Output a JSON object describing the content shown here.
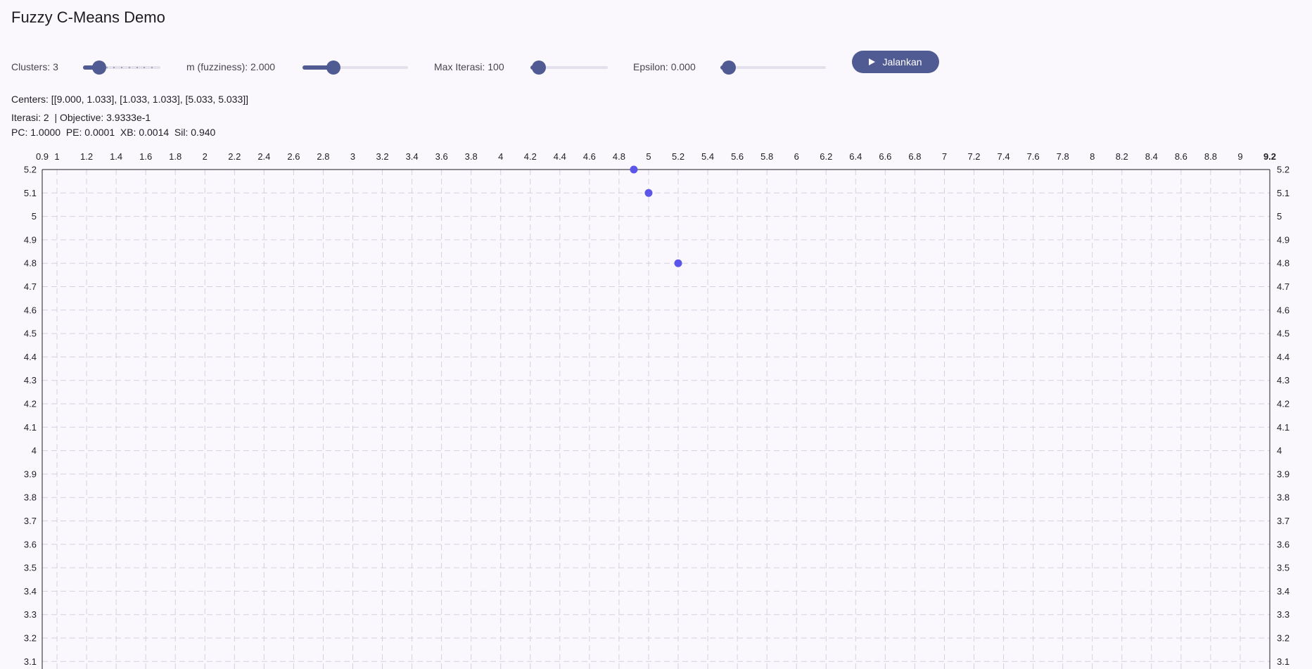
{
  "title": "Fuzzy C-Means Demo",
  "controls": {
    "clusters": {
      "label": "Clusters: 3",
      "value": 3,
      "min": 2,
      "max": 10
    },
    "fuzziness": {
      "label": "m (fuzziness): 2.000",
      "value": 2.0,
      "min": 1.0,
      "max": 5.0
    },
    "max_iter": {
      "label": "Max Iterasi: 100",
      "value": 100,
      "min": 100,
      "max": 1000
    },
    "epsilon": {
      "label": "Epsilon: 0.000",
      "value": 0.0,
      "min": 0.0,
      "max": 1.0
    },
    "run_label": "Jalankan"
  },
  "results": {
    "centers": "Centers: [[9.000, 1.033], [1.033, 1.033], [5.033, 5.033]]",
    "iter_line": "Iterasi: 2  | Objective: 3.9333e-1",
    "metrics_line": "PC: 1.0000  PE: 0.0001  XB: 0.0014  Sil: 0.940"
  },
  "colors": {
    "accent": "#4f5b92",
    "point": "#5b55ea",
    "grid": "#d3d1dd"
  },
  "chart_data": {
    "type": "scatter",
    "x_ticks": [
      "0.9",
      "1",
      "1.2",
      "1.4",
      "1.6",
      "1.8",
      "2",
      "2.2",
      "2.4",
      "2.6",
      "2.8",
      "3",
      "3.2",
      "3.4",
      "3.6",
      "3.8",
      "4",
      "4.2",
      "4.4",
      "4.6",
      "4.8",
      "5",
      "5.2",
      "5.4",
      "5.6",
      "5.8",
      "6",
      "6.2",
      "6.4",
      "6.6",
      "6.8",
      "7",
      "7.2",
      "7.4",
      "7.6",
      "7.8",
      "8",
      "8.2",
      "8.4",
      "8.6",
      "8.8",
      "9",
      "9.2"
    ],
    "y_ticks": [
      "5.2",
      "5.1",
      "5",
      "4.9",
      "4.8",
      "4.7",
      "4.6",
      "4.5",
      "4.4",
      "4.3",
      "4.2",
      "4.1",
      "4",
      "3.9",
      "3.8",
      "3.7",
      "3.6",
      "3.5",
      "3.4",
      "3.3",
      "3.2",
      "3.1"
    ],
    "xlim": [
      0.9,
      9.2
    ],
    "ylim_top": 5.2,
    "y_visible_min": 3.1,
    "points": [
      {
        "x": 4.9,
        "y": 5.2
      },
      {
        "x": 5.0,
        "y": 5.1
      },
      {
        "x": 5.2,
        "y": 4.8
      }
    ],
    "grid": true
  }
}
